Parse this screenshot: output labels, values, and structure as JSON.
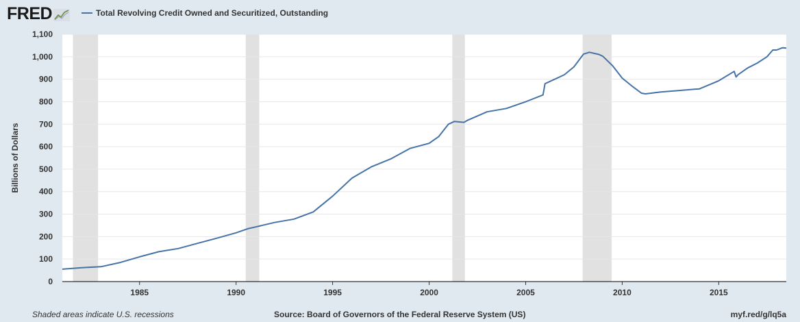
{
  "brand": {
    "logo_text": "FRED"
  },
  "legend": {
    "series_label": "Total Revolving Credit Owned and Securitized, Outstanding",
    "color": "#4572a7"
  },
  "footer": {
    "recession_note": "Shaded areas indicate U.S. recessions",
    "source": "Source: Board of Governors of the Federal Reserve System (US)",
    "short_url": "myf.red/g/lq5a"
  },
  "chart_data": {
    "type": "line",
    "ylabel": "Billions of Dollars",
    "xlim": [
      1981.0,
      2018.5
    ],
    "ylim": [
      0,
      1100
    ],
    "y_ticks": [
      0,
      100,
      200,
      300,
      400,
      500,
      600,
      700,
      800,
      900,
      1000,
      1100
    ],
    "y_tick_labels": [
      "0",
      "100",
      "200",
      "300",
      "400",
      "500",
      "600",
      "700",
      "800",
      "900",
      "1,000",
      "1,100"
    ],
    "x_ticks": [
      1985,
      1990,
      1995,
      2000,
      2005,
      2010,
      2015
    ],
    "x_tick_labels": [
      "1985",
      "1990",
      "1995",
      "2000",
      "2005",
      "2010",
      "2015"
    ],
    "grid": "horizontal",
    "recessions": [
      [
        1981.55,
        1982.85
      ],
      [
        1990.5,
        1991.2
      ],
      [
        2001.2,
        2001.85
      ],
      [
        2007.95,
        2009.45
      ]
    ],
    "recession_color": "#e1e1e1",
    "line_color": "#4572a7",
    "series": [
      {
        "name": "Total Revolving Credit Owned and Securitized, Outstanding",
        "x": [
          1981.0,
          1982.0,
          1983.0,
          1984.0,
          1985.0,
          1986.0,
          1987.0,
          1988.0,
          1989.0,
          1990.0,
          1990.6,
          1991.0,
          1992.0,
          1993.0,
          1994.0,
          1995.0,
          1996.0,
          1997.0,
          1998.0,
          1999.0,
          2000.0,
          2000.5,
          2001.0,
          2001.3,
          2001.8,
          2002.0,
          2003.0,
          2004.0,
          2005.0,
          2005.9,
          2006.0,
          2007.0,
          2007.5,
          2008.0,
          2008.3,
          2008.8,
          2009.0,
          2009.5,
          2010.0,
          2010.5,
          2011.0,
          2011.2,
          2012.0,
          2013.0,
          2014.0,
          2015.0,
          2015.8,
          2015.9,
          2016.0,
          2016.5,
          2017.0,
          2017.5,
          2017.8,
          2018.0,
          2018.3,
          2018.5
        ],
        "values": [
          55,
          62,
          66,
          85,
          110,
          133,
          147,
          170,
          193,
          217,
          235,
          243,
          263,
          278,
          310,
          380,
          460,
          510,
          545,
          592,
          615,
          645,
          700,
          712,
          708,
          718,
          755,
          770,
          800,
          830,
          880,
          920,
          955,
          1012,
          1020,
          1010,
          1002,
          960,
          905,
          870,
          838,
          835,
          843,
          850,
          857,
          893,
          935,
          910,
          920,
          950,
          972,
          1000,
          1030,
          1030,
          1040,
          1038
        ]
      }
    ]
  }
}
